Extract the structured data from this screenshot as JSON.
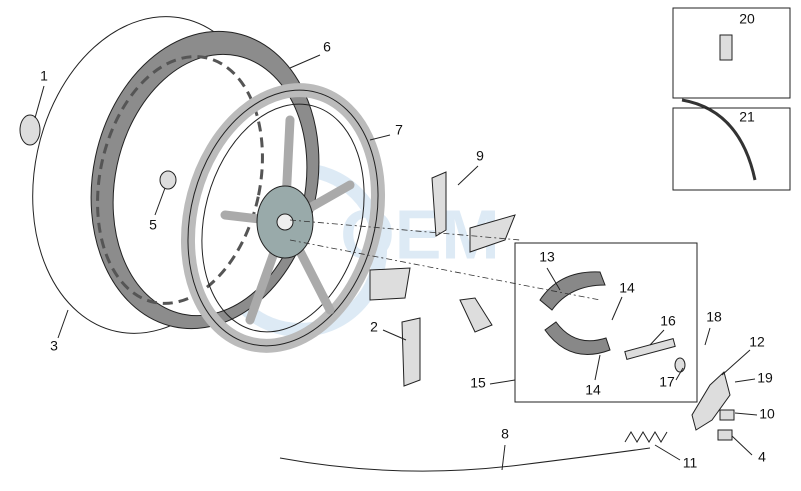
{
  "callouts": [
    {
      "label": "1"
    },
    {
      "label": "6"
    },
    {
      "label": "7"
    },
    {
      "label": "9"
    },
    {
      "label": "5"
    },
    {
      "label": "3"
    },
    {
      "label": "2"
    },
    {
      "label": "13"
    },
    {
      "label": "14"
    },
    {
      "label": "16"
    },
    {
      "label": "18"
    },
    {
      "label": "12"
    },
    {
      "label": "19"
    },
    {
      "label": "17"
    },
    {
      "label": "15"
    },
    {
      "label": "14"
    },
    {
      "label": "10"
    },
    {
      "label": "4"
    },
    {
      "label": "8"
    },
    {
      "label": "11"
    },
    {
      "label": "20"
    },
    {
      "label": "21"
    }
  ]
}
